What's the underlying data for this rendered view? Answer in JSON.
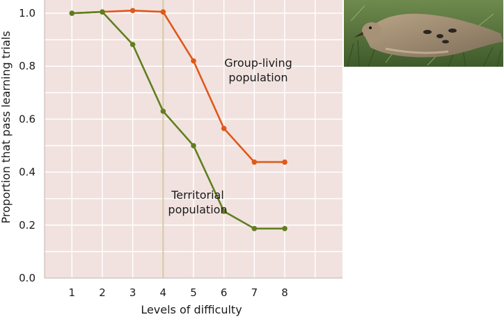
{
  "chart_data": {
    "type": "line",
    "title": "",
    "xlabel": "Levels of difficulty",
    "ylabel": "Proportion that pass learning trials",
    "x": [
      1,
      2,
      3,
      4,
      5,
      6,
      7,
      8
    ],
    "xticks": [
      "1",
      "2",
      "3",
      "4",
      "5",
      "6",
      "7",
      "8"
    ],
    "xlim": [
      0.1,
      9.9
    ],
    "yticks": [
      "0.0",
      "0.2",
      "0.4",
      "0.6",
      "0.8",
      "1.0"
    ],
    "ylim": [
      0.0,
      1.05
    ],
    "grid": true,
    "highlight_x": 4,
    "series": [
      {
        "name": "Group-living population",
        "label_lines": [
          "Group-living",
          "population"
        ],
        "color": "#e0581a",
        "values": [
          1.0,
          1.005,
          1.01,
          1.005,
          0.82,
          0.565,
          0.438,
          0.438
        ]
      },
      {
        "name": "Territorial population",
        "label_lines": [
          "Territorial",
          "population"
        ],
        "color": "#5f7f1f",
        "values": [
          1.0,
          1.005,
          0.882,
          0.63,
          0.5,
          0.252,
          0.187,
          0.187
        ]
      }
    ],
    "background_color": "#f1e2df",
    "grid_color": "#ffffff",
    "highlight_color": "#d6c9a0"
  },
  "photo": {
    "icon": "mourning-dove-photo"
  }
}
